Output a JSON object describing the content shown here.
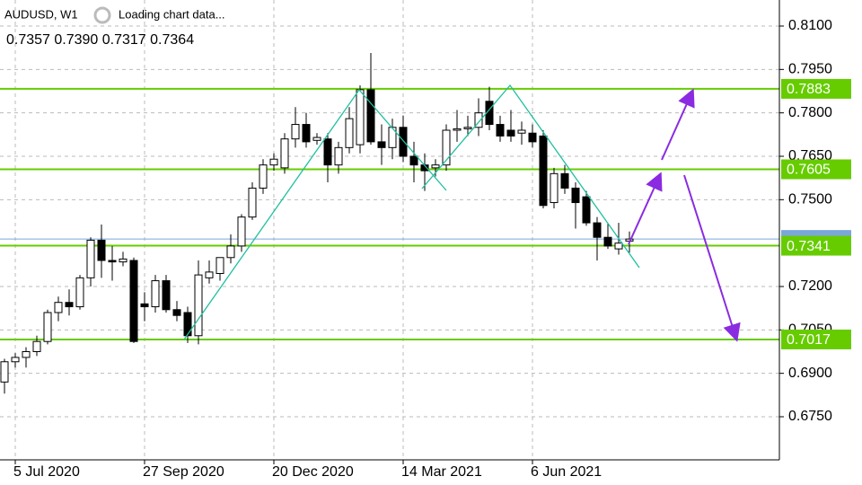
{
  "chart_data": {
    "type": "candlestick",
    "title": "AUDUSD, W1",
    "status": "Loading chart data...",
    "ohlc_readout": "0.7357 0.7390 0.7317 0.7364",
    "categories": [
      null,
      "5 Jul 2020",
      null,
      null,
      null,
      null,
      null,
      null,
      null,
      null,
      null,
      null,
      null,
      "27 Sep 2020",
      null,
      null,
      null,
      null,
      null,
      null,
      null,
      null,
      null,
      null,
      null,
      "20 Dec 2020",
      null,
      null,
      null,
      null,
      null,
      null,
      null,
      null,
      null,
      null,
      null,
      "14 Mar 2021",
      null,
      null,
      null,
      null,
      null,
      null,
      null,
      null,
      null,
      null,
      null,
      "6 Jun 2021",
      null,
      null,
      null,
      null,
      null,
      null,
      null,
      null,
      null
    ],
    "open": [
      0.687,
      0.694,
      0.6955,
      0.6975,
      0.701,
      0.711,
      0.7145,
      0.713,
      0.723,
      0.736,
      0.729,
      0.7285,
      0.729,
      0.714,
      0.713,
      0.722,
      0.712,
      0.711,
      0.703,
      0.723,
      0.7245,
      0.73,
      0.734,
      0.744,
      0.754,
      0.762,
      0.761,
      0.771,
      0.776,
      0.7705,
      0.771,
      0.762,
      0.768,
      0.769,
      0.788,
      0.77,
      0.768,
      0.775,
      0.765,
      0.762,
      0.761,
      0.762,
      0.774,
      0.7745,
      0.775,
      0.784,
      0.776,
      0.774,
      0.773,
      0.773,
      0.772,
      0.749,
      0.759,
      0.754,
      0.751,
      0.742,
      0.737,
      0.733,
      0.7357
    ],
    "high": [
      0.695,
      0.697,
      0.699,
      0.703,
      0.712,
      0.7165,
      0.719,
      0.724,
      0.737,
      0.7414,
      0.734,
      0.732,
      0.73,
      0.718,
      0.724,
      0.724,
      0.715,
      0.713,
      0.729,
      0.729,
      0.73,
      0.738,
      0.745,
      0.756,
      0.764,
      0.766,
      0.773,
      0.782,
      0.78,
      0.773,
      0.773,
      0.77,
      0.782,
      0.7895,
      0.8007,
      0.776,
      0.778,
      0.779,
      0.77,
      0.766,
      0.764,
      0.776,
      0.781,
      0.779,
      0.785,
      0.789,
      0.779,
      0.781,
      0.777,
      0.776,
      0.774,
      0.761,
      0.762,
      0.756,
      0.753,
      0.744,
      0.742,
      0.742,
      0.739
    ],
    "low": [
      0.683,
      0.692,
      0.692,
      0.696,
      0.7,
      0.708,
      0.71,
      0.712,
      0.72,
      0.723,
      0.722,
      0.727,
      0.7005,
      0.708,
      0.711,
      0.711,
      0.708,
      0.7005,
      0.7,
      0.721,
      0.722,
      0.728,
      0.732,
      0.743,
      0.752,
      0.76,
      0.759,
      0.768,
      0.768,
      0.769,
      0.756,
      0.759,
      0.766,
      0.766,
      0.769,
      0.762,
      0.764,
      0.763,
      0.756,
      0.753,
      0.758,
      0.76,
      0.77,
      0.772,
      0.772,
      0.774,
      0.77,
      0.77,
      0.769,
      0.768,
      0.747,
      0.747,
      0.752,
      0.74,
      0.741,
      0.729,
      0.733,
      0.731,
      0.7317
    ],
    "close": [
      0.694,
      0.6955,
      0.6975,
      0.701,
      0.711,
      0.7145,
      0.713,
      0.723,
      0.736,
      0.729,
      0.7285,
      0.7295,
      0.701,
      0.713,
      0.722,
      0.712,
      0.71,
      0.703,
      0.724,
      0.725,
      0.73,
      0.734,
      0.744,
      0.754,
      0.762,
      0.764,
      0.771,
      0.776,
      0.77,
      0.7715,
      0.762,
      0.768,
      0.778,
      0.788,
      0.77,
      0.768,
      0.775,
      0.765,
      0.762,
      0.76,
      0.762,
      0.774,
      0.7745,
      0.775,
      0.78,
      0.776,
      0.772,
      0.772,
      0.774,
      0.77,
      0.748,
      0.759,
      0.754,
      0.749,
      0.742,
      0.737,
      0.734,
      0.735,
      0.7364
    ],
    "up_color": "#ffffff",
    "down_color": "#000000",
    "ylim": [
      0.6601,
      0.819
    ],
    "yticks": [
      {
        "value": 0.81,
        "label": "0.8100"
      },
      {
        "value": 0.795,
        "label": "0.7950"
      },
      {
        "value": 0.78,
        "label": "0.7800"
      },
      {
        "value": 0.765,
        "label": "0.7650"
      },
      {
        "value": 0.75,
        "label": "0.7500"
      },
      {
        "value": 0.72,
        "label": "0.7200"
      },
      {
        "value": 0.705,
        "label": "0.7050"
      },
      {
        "value": 0.69,
        "label": "0.6900"
      },
      {
        "value": 0.675,
        "label": "0.6750"
      }
    ],
    "grid": true,
    "levels": [
      0.7883,
      0.7605,
      0.7341,
      0.7017
    ],
    "level_color": "#66cc00",
    "price_line_color": "#7aa7d9"
  }
}
